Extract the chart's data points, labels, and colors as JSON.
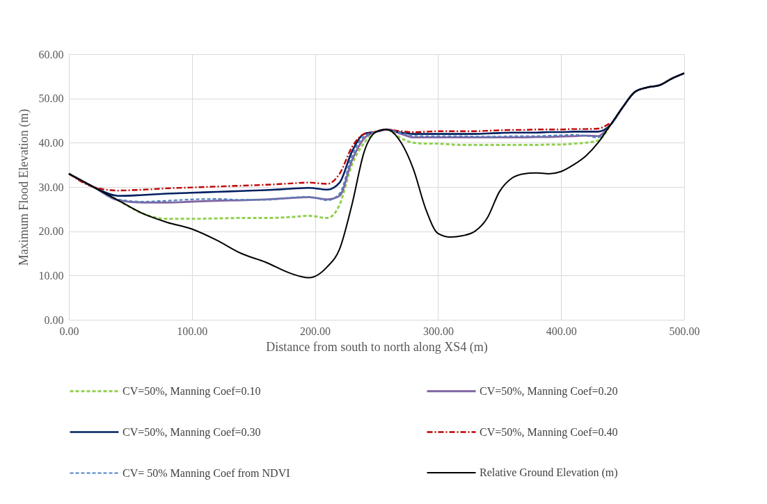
{
  "chart_data": {
    "type": "line",
    "xlabel": "Distance from south to north along XS4 (m)",
    "ylabel": "Maximum Flood Elevation (m)",
    "x": [
      0,
      20,
      40,
      60,
      80,
      100,
      120,
      140,
      160,
      180,
      195,
      210,
      220,
      230,
      240,
      250,
      258,
      270,
      280,
      290,
      300,
      310,
      320,
      330,
      340,
      350,
      360,
      370,
      380,
      390,
      400,
      410,
      420,
      430,
      440,
      450,
      460,
      470,
      480,
      490,
      500
    ],
    "xlim": [
      0,
      500
    ],
    "xticks": [
      {
        "value": 0,
        "label": "0.00"
      },
      {
        "value": 100,
        "label": "100.00"
      },
      {
        "value": 200,
        "label": "200.00"
      },
      {
        "value": 300,
        "label": "300.00"
      },
      {
        "value": 400,
        "label": "400.00"
      },
      {
        "value": 500,
        "label": "500.00"
      }
    ],
    "ylim": [
      0,
      60
    ],
    "yticks": [
      {
        "value": 0,
        "label": "0.00"
      },
      {
        "value": 10,
        "label": "10.00"
      },
      {
        "value": 20,
        "label": "20.00"
      },
      {
        "value": 30,
        "label": "30.00"
      },
      {
        "value": 40,
        "label": "40.00"
      },
      {
        "value": 50,
        "label": "50.00"
      },
      {
        "value": 60,
        "label": "60.00"
      }
    ],
    "grid": true,
    "legend": "bottom",
    "marker": "none",
    "series": [
      {
        "name": "CV=50%, Manning Coef=0.10",
        "color": "#92d050",
        "line_style": "dashed",
        "values": [
          33,
          30,
          27,
          24,
          22.8,
          22.8,
          22.9,
          23,
          23,
          23.2,
          23.5,
          23,
          26,
          35,
          40,
          42.5,
          43,
          41,
          40,
          39.8,
          39.8,
          39.6,
          39.5,
          39.5,
          39.5,
          39.5,
          39.5,
          39.5,
          39.5,
          39.6,
          39.6,
          39.8,
          40,
          40.5,
          44,
          null,
          null,
          null,
          null,
          null,
          null
        ]
      },
      {
        "name": "CV=50%, Manning Coef=0.20",
        "color": "#8064a2",
        "line_style": "solid",
        "values": [
          33,
          30,
          27,
          26.5,
          26.5,
          26.7,
          26.9,
          27,
          27.2,
          27.5,
          27.7,
          27.2,
          28,
          36,
          41,
          42.5,
          43,
          42,
          41.2,
          41.2,
          41.2,
          41.2,
          41.2,
          41.2,
          41.2,
          41.2,
          41.2,
          41.2,
          41.3,
          41.3,
          41.4,
          41.5,
          41.6,
          41.5,
          44,
          48,
          51.5,
          52.5,
          53,
          54.5,
          55.7
        ]
      },
      {
        "name": "CV=50%, Manning Coef=0.30",
        "color": "#002060",
        "line_style": "solid",
        "values": [
          33,
          30,
          28,
          28.2,
          28.5,
          28.7,
          28.9,
          29.1,
          29.3,
          29.6,
          29.8,
          29.4,
          31,
          38,
          42,
          42.5,
          43,
          42.3,
          42,
          42,
          42,
          42,
          42,
          42,
          42.1,
          42.2,
          42.3,
          42.3,
          42.3,
          42.4,
          42.4,
          42.5,
          42.5,
          42.5,
          44,
          48,
          51.5,
          52.5,
          53,
          54.5,
          55.7
        ]
      },
      {
        "name": "CV=50%, Manning Coef=0.40",
        "color": "#c00000",
        "line_style": "dashdot",
        "values": [
          33,
          30,
          29.2,
          29.4,
          29.7,
          29.9,
          30.1,
          30.3,
          30.5,
          30.8,
          31,
          30.7,
          33,
          39,
          42,
          42.5,
          43,
          42.6,
          42.4,
          42.5,
          42.6,
          42.6,
          42.6,
          42.6,
          42.7,
          42.8,
          42.9,
          42.9,
          43,
          43,
          43,
          43.1,
          43.1,
          43.2,
          44.5,
          null,
          null,
          null,
          null,
          null,
          null
        ]
      },
      {
        "name": "CV= 50% Manning Coef from NDVI",
        "color": "#4f81bd",
        "line_style": "dashed",
        "values": [
          33,
          30,
          27.2,
          26.7,
          26.9,
          27.2,
          27.3,
          27.1,
          27.1,
          27.6,
          27.8,
          27,
          28.5,
          37,
          41.5,
          42.5,
          43,
          42.2,
          41.6,
          41.5,
          41.5,
          41.5,
          41.5,
          41.4,
          41.4,
          41.4,
          41.5,
          41.5,
          41.5,
          41.6,
          41.7,
          41.8,
          41.6,
          41.2,
          44,
          48,
          51.5,
          52.5,
          53,
          54.5,
          55.7
        ]
      },
      {
        "name": "Relative Ground Elevation (m)",
        "color": "#000000",
        "line_style": "solid",
        "values": [
          33,
          30,
          27,
          24,
          22,
          20.5,
          18,
          15,
          13,
          10.5,
          9.5,
          12,
          16,
          26,
          38,
          42.5,
          43,
          40,
          34,
          25,
          19.5,
          18.7,
          19,
          20,
          23,
          29,
          32,
          33,
          33.2,
          33,
          33.5,
          35,
          37,
          40,
          44,
          48,
          51.5,
          52.5,
          53,
          54.5,
          55.7
        ]
      }
    ]
  }
}
